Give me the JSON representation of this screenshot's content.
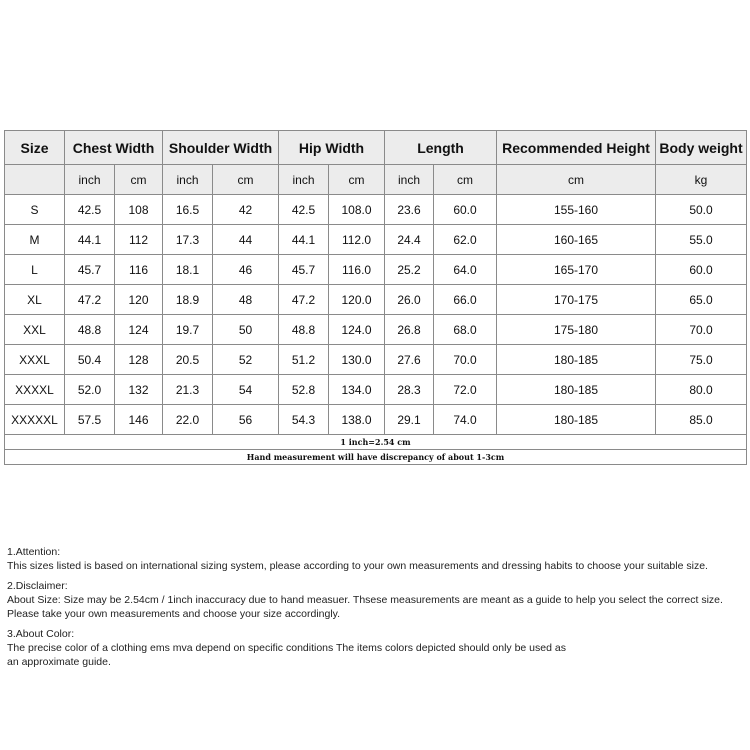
{
  "table": {
    "headers": [
      "Size",
      "Chest Width",
      "Shoulder Width",
      "Hip Width",
      "Length",
      "Recommended Height",
      "Body weight"
    ],
    "units": [
      "",
      "inch",
      "cm",
      "inch",
      "cm",
      "inch",
      "cm",
      "inch",
      "cm",
      "cm",
      "kg"
    ],
    "rows": [
      [
        "S",
        "42.5",
        "108",
        "16.5",
        "42",
        "42.5",
        "108.0",
        "23.6",
        "60.0",
        "155-160",
        "50.0"
      ],
      [
        "M",
        "44.1",
        "112",
        "17.3",
        "44",
        "44.1",
        "112.0",
        "24.4",
        "62.0",
        "160-165",
        "55.0"
      ],
      [
        "L",
        "45.7",
        "116",
        "18.1",
        "46",
        "45.7",
        "116.0",
        "25.2",
        "64.0",
        "165-170",
        "60.0"
      ],
      [
        "XL",
        "47.2",
        "120",
        "18.9",
        "48",
        "47.2",
        "120.0",
        "26.0",
        "66.0",
        "170-175",
        "65.0"
      ],
      [
        "XXL",
        "48.8",
        "124",
        "19.7",
        "50",
        "48.8",
        "124.0",
        "26.8",
        "68.0",
        "175-180",
        "70.0"
      ],
      [
        "XXXL",
        "50.4",
        "128",
        "20.5",
        "52",
        "51.2",
        "130.0",
        "27.6",
        "70.0",
        "180-185",
        "75.0"
      ],
      [
        "XXXXL",
        "52.0",
        "132",
        "21.3",
        "54",
        "52.8",
        "134.0",
        "28.3",
        "72.0",
        "180-185",
        "80.0"
      ],
      [
        "XXXXXL",
        "57.5",
        "146",
        "22.0",
        "56",
        "54.3",
        "138.0",
        "29.1",
        "74.0",
        "180-185",
        "85.0"
      ]
    ],
    "conversion_note": "1 inch=2.54 cm",
    "measurement_note": "Hand measurement will have discrepancy of about 1-3cm"
  },
  "notes": [
    {
      "title": "1.Attention:",
      "lines": [
        "This sizes listed is based on international sizing system, please according to your own measurements and dressing habits to choose your suitable size."
      ]
    },
    {
      "title": "2.Disclaimer:",
      "lines": [
        "About Size: Size may be 2.54cm / 1inch inaccuracy due to hand measuer. Thsese measurements are meant as a guide to help you select the correct size.",
        "Please take your own measurements and choose your size accordingly."
      ]
    },
    {
      "title": "3.About Color:",
      "lines": [
        "The precise color of a clothing ems mva depend on specific conditions The items colors depicted should only be used as",
        "an approximate guide."
      ]
    }
  ]
}
